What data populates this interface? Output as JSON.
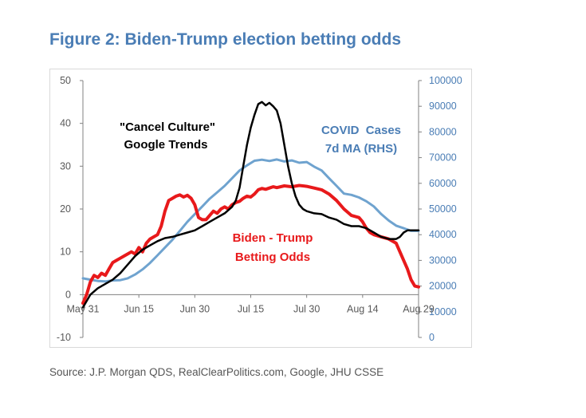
{
  "title": "Figure 2: Biden-Trump election betting odds",
  "source": "Source: J.P. Morgan QDS, RealClearPolitics.com, Google, JHU CSSE",
  "chart_data": {
    "type": "line",
    "x_tick_labels": [
      "May 31",
      "Jun 15",
      "Jun 30",
      "Jul 15",
      "Jul 30",
      "Aug 14",
      "Aug 29"
    ],
    "x_range_days": [
      0,
      90
    ],
    "y_left": {
      "ylim": [
        -10,
        50
      ],
      "ticks": [
        -10,
        0,
        10,
        20,
        30,
        40,
        50
      ]
    },
    "y_right": {
      "ylim": [
        0,
        100000
      ],
      "ticks": [
        "0",
        "10000",
        "20000",
        "30000",
        "40000",
        "50000",
        "60000",
        "70000",
        "80000",
        "90000",
        "100000"
      ]
    },
    "annotations": {
      "cancel_culture": [
        "\"Cancel Culture\"",
        "Google Trends"
      ],
      "covid": [
        "COVID  Cases",
        "7d MA (RHS)"
      ],
      "betting": [
        "Biden - Trump",
        "Betting Odds"
      ]
    },
    "series": [
      {
        "key": "cancel",
        "axis": "left",
        "color": "#000000",
        "points": [
          [
            0,
            -3
          ],
          [
            2,
            0
          ],
          [
            4,
            1.5
          ],
          [
            6,
            2.5
          ],
          [
            8,
            3.5
          ],
          [
            10,
            5
          ],
          [
            12,
            7
          ],
          [
            14,
            9
          ],
          [
            16,
            10.5
          ],
          [
            18,
            11.5
          ],
          [
            20,
            12.5
          ],
          [
            22,
            13.2
          ],
          [
            24,
            13.5
          ],
          [
            26,
            14
          ],
          [
            28,
            14.5
          ],
          [
            30,
            15
          ],
          [
            32,
            16
          ],
          [
            34,
            17
          ],
          [
            36,
            18
          ],
          [
            38,
            19
          ],
          [
            40,
            20.5
          ],
          [
            41,
            22
          ],
          [
            42,
            25
          ],
          [
            43,
            30
          ],
          [
            44,
            35
          ],
          [
            45,
            39
          ],
          [
            46,
            42
          ],
          [
            47,
            44.5
          ],
          [
            48,
            45
          ],
          [
            49,
            44.2
          ],
          [
            50,
            44.8
          ],
          [
            51,
            44
          ],
          [
            52,
            43
          ],
          [
            53,
            40
          ],
          [
            54,
            35
          ],
          [
            55,
            30
          ],
          [
            56,
            26
          ],
          [
            57,
            23
          ],
          [
            58,
            21
          ],
          [
            59,
            20
          ],
          [
            60,
            19.5
          ],
          [
            62,
            19
          ],
          [
            64,
            18.8
          ],
          [
            66,
            18
          ],
          [
            68,
            17.5
          ],
          [
            70,
            16.5
          ],
          [
            72,
            16
          ],
          [
            74,
            16
          ],
          [
            76,
            15.5
          ],
          [
            78,
            14.5
          ],
          [
            80,
            13.5
          ],
          [
            82,
            13
          ],
          [
            84,
            13
          ],
          [
            85,
            13.5
          ],
          [
            86,
            14.5
          ],
          [
            87,
            15
          ],
          [
            88,
            15
          ],
          [
            89,
            15
          ],
          [
            90,
            15
          ]
        ]
      },
      {
        "key": "covid",
        "axis": "right",
        "color": "#6fa3cf",
        "points": [
          [
            0,
            23000
          ],
          [
            2,
            22500
          ],
          [
            4,
            22000
          ],
          [
            6,
            21800
          ],
          [
            8,
            22200
          ],
          [
            10,
            22300
          ],
          [
            12,
            23000
          ],
          [
            14,
            24500
          ],
          [
            16,
            26500
          ],
          [
            18,
            29000
          ],
          [
            20,
            32000
          ],
          [
            22,
            35000
          ],
          [
            24,
            38000
          ],
          [
            26,
            41500
          ],
          [
            28,
            45000
          ],
          [
            30,
            48000
          ],
          [
            32,
            51000
          ],
          [
            34,
            54000
          ],
          [
            36,
            56500
          ],
          [
            38,
            59000
          ],
          [
            40,
            62000
          ],
          [
            42,
            65000
          ],
          [
            44,
            67000
          ],
          [
            46,
            68800
          ],
          [
            48,
            69200
          ],
          [
            50,
            68700
          ],
          [
            52,
            69300
          ],
          [
            54,
            68500
          ],
          [
            56,
            68900
          ],
          [
            58,
            68000
          ],
          [
            60,
            68300
          ],
          [
            62,
            66500
          ],
          [
            64,
            65000
          ],
          [
            66,
            62000
          ],
          [
            68,
            59000
          ],
          [
            70,
            56000
          ],
          [
            72,
            55500
          ],
          [
            74,
            54500
          ],
          [
            76,
            53000
          ],
          [
            78,
            51000
          ],
          [
            80,
            48000
          ],
          [
            82,
            45500
          ],
          [
            84,
            43500
          ],
          [
            86,
            42500
          ],
          [
            88,
            41500
          ],
          [
            90,
            41500
          ]
        ]
      },
      {
        "key": "betting",
        "axis": "left",
        "color": "#e8191b",
        "points": [
          [
            0,
            -2
          ],
          [
            1,
            0
          ],
          [
            2,
            3
          ],
          [
            3,
            4.5
          ],
          [
            4,
            4
          ],
          [
            5,
            5
          ],
          [
            6,
            4.5
          ],
          [
            7,
            6
          ],
          [
            8,
            7.5
          ],
          [
            9,
            8
          ],
          [
            10,
            8.5
          ],
          [
            11,
            9
          ],
          [
            12,
            9.5
          ],
          [
            13,
            10
          ],
          [
            14,
            9.5
          ],
          [
            15,
            11
          ],
          [
            16,
            10
          ],
          [
            17,
            12
          ],
          [
            18,
            13
          ],
          [
            19,
            13.5
          ],
          [
            20,
            14
          ],
          [
            21,
            16
          ],
          [
            22,
            19.5
          ],
          [
            23,
            22
          ],
          [
            24,
            22.5
          ],
          [
            25,
            23
          ],
          [
            26,
            23.3
          ],
          [
            27,
            22.8
          ],
          [
            28,
            23.2
          ],
          [
            29,
            22.5
          ],
          [
            30,
            21
          ],
          [
            31,
            18
          ],
          [
            32,
            17.5
          ],
          [
            33,
            17.5
          ],
          [
            34,
            18.5
          ],
          [
            35,
            19.5
          ],
          [
            36,
            19
          ],
          [
            37,
            20
          ],
          [
            38,
            20.5
          ],
          [
            39,
            20
          ],
          [
            40,
            21
          ],
          [
            41,
            21.5
          ],
          [
            42,
            21.8
          ],
          [
            43,
            22.5
          ],
          [
            44,
            23
          ],
          [
            45,
            22.8
          ],
          [
            46,
            23.5
          ],
          [
            47,
            24.5
          ],
          [
            48,
            24.8
          ],
          [
            49,
            24.6
          ],
          [
            50,
            24.9
          ],
          [
            51,
            25.2
          ],
          [
            52,
            25
          ],
          [
            54,
            25.4
          ],
          [
            56,
            25.2
          ],
          [
            58,
            25.5
          ],
          [
            60,
            25.3
          ],
          [
            62,
            24.9
          ],
          [
            64,
            24.5
          ],
          [
            66,
            23.5
          ],
          [
            68,
            22
          ],
          [
            70,
            20
          ],
          [
            72,
            18.5
          ],
          [
            74,
            18
          ],
          [
            75,
            17
          ],
          [
            76,
            15.5
          ],
          [
            77,
            14.5
          ],
          [
            78,
            14
          ],
          [
            80,
            13.5
          ],
          [
            82,
            13
          ],
          [
            84,
            12
          ],
          [
            85,
            10
          ],
          [
            86,
            8
          ],
          [
            87,
            6
          ],
          [
            88,
            3.5
          ],
          [
            89,
            2
          ],
          [
            90,
            1.8
          ]
        ]
      }
    ]
  }
}
